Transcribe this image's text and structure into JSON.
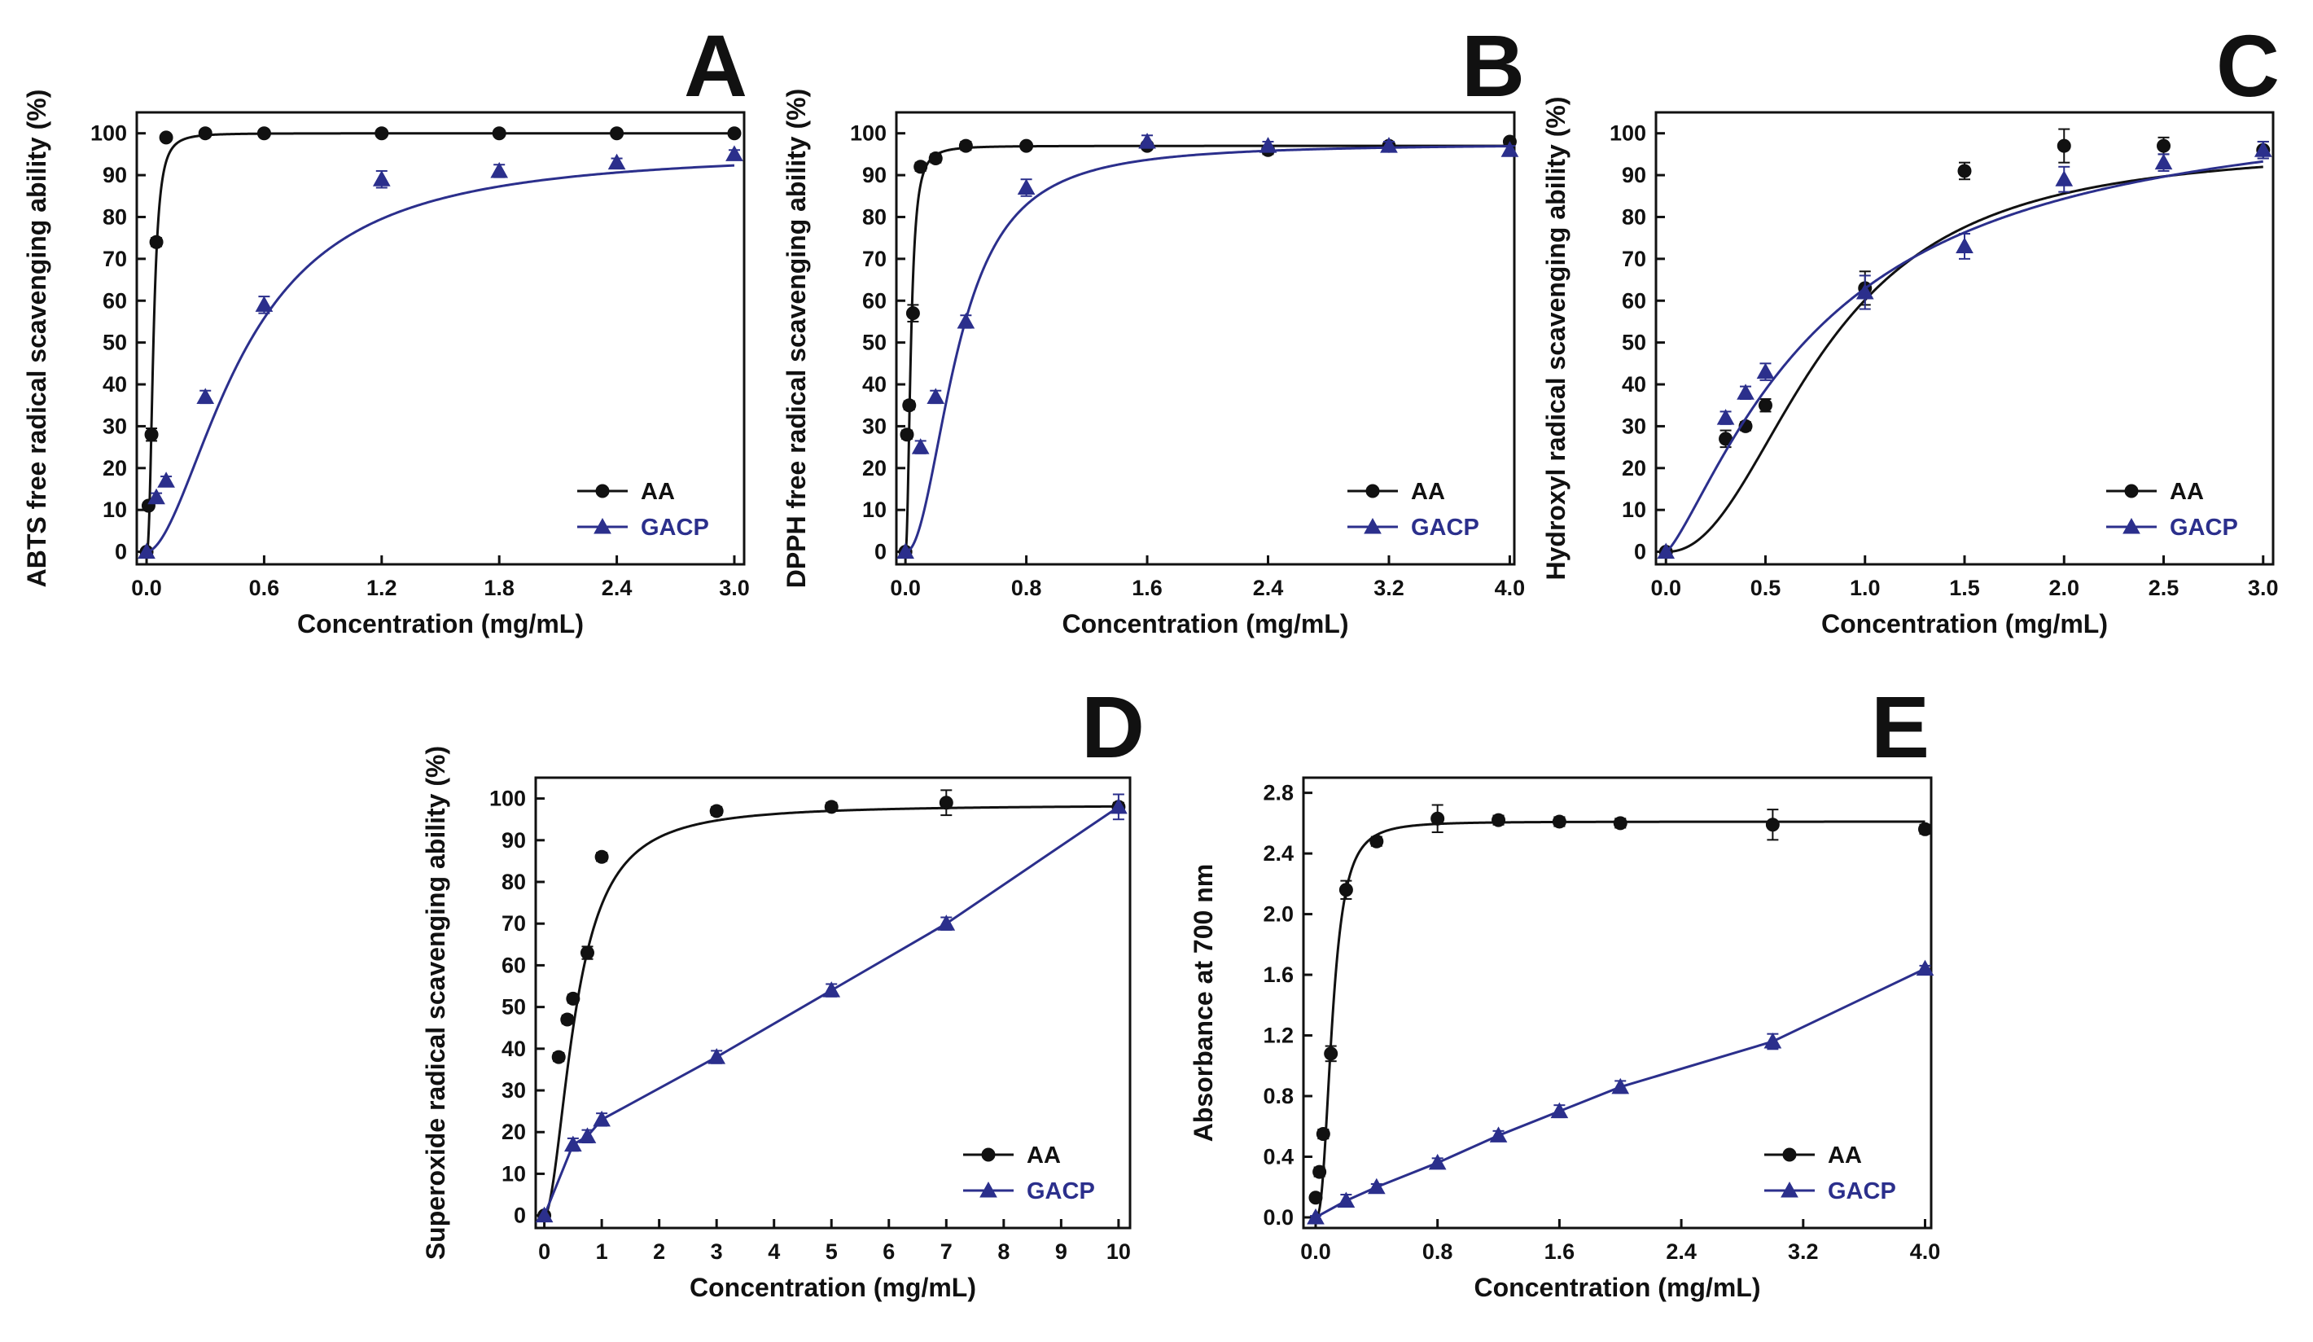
{
  "chart_data": [
    {
      "panel": "A",
      "type": "line",
      "xlabel": "Concentration (mg/mL)",
      "ylabel": "ABTS free radical scavenging ability (%)",
      "xlim": [
        -0.05,
        3.05
      ],
      "ylim": [
        -3,
        105
      ],
      "xticks": [
        0.0,
        0.6,
        1.2,
        1.8,
        2.4,
        3.0
      ],
      "xtick_labels": [
        "0.0",
        "0.6",
        "1.2",
        "1.8",
        "2.4",
        "3.0"
      ],
      "yticks": [
        0,
        10,
        20,
        30,
        40,
        50,
        60,
        70,
        80,
        90,
        100
      ],
      "ytick_labels": [
        "0",
        "10",
        "20",
        "30",
        "40",
        "50",
        "60",
        "70",
        "80",
        "90",
        "100"
      ],
      "legend_position": "bottom-right",
      "series": [
        {
          "name": "AA",
          "marker": "circle",
          "color": "#111111",
          "x": [
            0,
            0.01,
            0.025,
            0.05,
            0.1,
            0.3,
            0.6,
            1.2,
            1.8,
            2.4,
            3.0
          ],
          "y": [
            0,
            11,
            28,
            74,
            99,
            100,
            100,
            100,
            100,
            100,
            100
          ],
          "err": [
            0,
            0.5,
            1.5,
            1,
            0.5,
            0.5,
            0.5,
            0.5,
            0.5,
            0.5,
            0.5
          ],
          "fit": {
            "model": "hill",
            "top": 100,
            "ec50": 0.035,
            "n": 2.5
          }
        },
        {
          "name": "GACP",
          "marker": "triangle",
          "color": "#2b2f8c",
          "x": [
            0,
            0.05,
            0.1,
            0.3,
            0.6,
            1.2,
            1.8,
            2.4,
            3.0
          ],
          "y": [
            0,
            13,
            17,
            37,
            59,
            89,
            91,
            93,
            95
          ],
          "err": [
            0,
            1,
            1,
            1.5,
            2,
            2,
            1.5,
            1,
            1
          ],
          "fit": {
            "model": "hill",
            "top": 96,
            "ec50": 0.5,
            "n": 1.8
          }
        }
      ],
      "legend": [
        "AA",
        "GACP"
      ]
    },
    {
      "panel": "B",
      "type": "line",
      "xlabel": "Concentration (mg/mL)",
      "ylabel": "DPPH free radical scavenging ability (%)",
      "xlim": [
        -0.06,
        4.03
      ],
      "ylim": [
        -3,
        105
      ],
      "xticks": [
        0.0,
        0.8,
        1.6,
        2.4,
        3.2,
        4.0
      ],
      "xtick_labels": [
        "0.0",
        "0.8",
        "1.6",
        "2.4",
        "3.2",
        "4.0"
      ],
      "yticks": [
        0,
        10,
        20,
        30,
        40,
        50,
        60,
        70,
        80,
        90,
        100
      ],
      "ytick_labels": [
        "0",
        "10",
        "20",
        "30",
        "40",
        "50",
        "60",
        "70",
        "80",
        "90",
        "100"
      ],
      "legend_position": "bottom-right",
      "series": [
        {
          "name": "AA",
          "marker": "circle",
          "color": "#111111",
          "x": [
            0,
            0.01,
            0.025,
            0.05,
            0.1,
            0.2,
            0.4,
            0.8,
            1.6,
            2.4,
            3.2,
            4.0
          ],
          "y": [
            0,
            28,
            35,
            57,
            92,
            94,
            97,
            97,
            97,
            96,
            97,
            98
          ],
          "err": [
            0,
            1,
            1,
            2,
            1,
            1,
            1,
            0.5,
            0.5,
            1,
            0.5,
            0.5
          ],
          "fit": {
            "model": "hill",
            "top": 97,
            "ec50": 0.036,
            "n": 2.2
          }
        },
        {
          "name": "GACP",
          "marker": "triangle",
          "color": "#2b2f8c",
          "x": [
            0,
            0.1,
            0.2,
            0.4,
            0.8,
            1.6,
            2.4,
            3.2,
            4.0
          ],
          "y": [
            0,
            25,
            37,
            55,
            87,
            98,
            97,
            97,
            96
          ],
          "err": [
            0,
            1.5,
            1.5,
            1.5,
            2,
            1.5,
            1,
            1,
            1
          ],
          "fit": {
            "model": "hill",
            "top": 97.5,
            "ec50": 0.35,
            "n": 2.1
          }
        }
      ],
      "legend": [
        "AA",
        "GACP"
      ]
    },
    {
      "panel": "C",
      "type": "line",
      "xlabel": "Concentration (mg/mL)",
      "ylabel": "Hydroxyl radical scavenging ability (%)",
      "xlim": [
        -0.05,
        3.05
      ],
      "ylim": [
        -3,
        105
      ],
      "xticks": [
        0.0,
        0.5,
        1.0,
        1.5,
        2.0,
        2.5,
        3.0
      ],
      "xtick_labels": [
        "0.0",
        "0.5",
        "1.0",
        "1.5",
        "2.0",
        "2.5",
        "3.0"
      ],
      "yticks": [
        0,
        10,
        20,
        30,
        40,
        50,
        60,
        70,
        80,
        90,
        100
      ],
      "ytick_labels": [
        "0",
        "10",
        "20",
        "30",
        "40",
        "50",
        "60",
        "70",
        "80",
        "90",
        "100"
      ],
      "legend_position": "bottom-right",
      "series": [
        {
          "name": "AA",
          "marker": "circle",
          "color": "#111111",
          "x": [
            0,
            0.3,
            0.4,
            0.5,
            1.0,
            1.5,
            2.0,
            2.5,
            3.0
          ],
          "y": [
            0,
            27,
            30,
            35,
            63,
            91,
            97,
            97,
            96
          ],
          "err": [
            0,
            2,
            1,
            1.5,
            4,
            2,
            4,
            2,
            2
          ],
          "fit": {
            "model": "hill",
            "top": 97,
            "ec50": 0.8,
            "n": 2.2
          }
        },
        {
          "name": "GACP",
          "marker": "triangle",
          "color": "#2b2f8c",
          "x": [
            0,
            0.3,
            0.4,
            0.5,
            1.0,
            1.5,
            2.0,
            2.5,
            3.0
          ],
          "y": [
            0,
            32,
            38,
            43,
            62,
            73,
            89,
            93,
            96
          ],
          "err": [
            0,
            1.5,
            1.5,
            2,
            4,
            3,
            3,
            2,
            2
          ],
          "fit": {
            "model": "hill",
            "top": 110,
            "ec50": 0.8,
            "n": 1.3
          }
        }
      ],
      "legend": [
        "AA",
        "GACP"
      ]
    },
    {
      "panel": "D",
      "type": "line",
      "xlabel": "Concentration (mg/mL)",
      "ylabel": "Superoxide radical scavenging ability (%)",
      "xlim": [
        -0.15,
        10.2
      ],
      "ylim": [
        -3,
        105
      ],
      "xticks": [
        0,
        1,
        2,
        3,
        4,
        5,
        6,
        7,
        8,
        9,
        10
      ],
      "xtick_labels": [
        "0",
        "1",
        "2",
        "3",
        "4",
        "5",
        "6",
        "7",
        "8",
        "9",
        "10"
      ],
      "yticks": [
        0,
        10,
        20,
        30,
        40,
        50,
        60,
        70,
        80,
        90,
        100
      ],
      "ytick_labels": [
        "0",
        "10",
        "20",
        "30",
        "40",
        "50",
        "60",
        "70",
        "80",
        "90",
        "100"
      ],
      "legend_position": "bottom-right",
      "series": [
        {
          "name": "AA",
          "marker": "circle",
          "color": "#111111",
          "x": [
            0,
            0.25,
            0.4,
            0.5,
            0.75,
            1.0,
            3.0,
            5.0,
            7.0,
            10.0
          ],
          "y": [
            0,
            38,
            47,
            52,
            63,
            86,
            97,
            98,
            99,
            98
          ],
          "err": [
            0,
            1,
            1,
            1,
            1.5,
            1,
            1,
            1,
            3,
            1
          ],
          "fit": {
            "model": "hill",
            "top": 98.5,
            "ec50": 0.55,
            "n": 1.9
          }
        },
        {
          "name": "GACP",
          "marker": "triangle",
          "color": "#2b2f8c",
          "x": [
            0,
            0.5,
            0.75,
            1.0,
            3.0,
            5.0,
            7.0,
            10.0
          ],
          "y": [
            0,
            17,
            19,
            23,
            38,
            54,
            70,
            98
          ],
          "err": [
            0,
            1.5,
            1.5,
            1.5,
            1.5,
            1.5,
            1.5,
            3
          ],
          "fit": {
            "model": "linear"
          }
        }
      ],
      "legend": [
        "AA",
        "GACP"
      ]
    },
    {
      "panel": "E",
      "type": "line",
      "xlabel": "Concentration (mg/mL)",
      "ylabel": "Absorbance at 700 nm",
      "xlim": [
        -0.08,
        4.04
      ],
      "ylim": [
        -0.07,
        2.9
      ],
      "xticks": [
        0.0,
        0.8,
        1.6,
        2.4,
        3.2,
        4.0
      ],
      "xtick_labels": [
        "0.0",
        "0.8",
        "1.6",
        "2.4",
        "3.2",
        "4.0"
      ],
      "yticks": [
        0.0,
        0.4,
        0.8,
        1.2,
        1.6,
        2.0,
        2.4,
        2.8
      ],
      "ytick_labels": [
        "0.0",
        "0.4",
        "0.8",
        "1.2",
        "1.6",
        "2.0",
        "2.4",
        "2.8"
      ],
      "legend_position": "bottom-right",
      "series": [
        {
          "name": "AA",
          "marker": "circle",
          "color": "#111111",
          "x": [
            0,
            0.025,
            0.05,
            0.1,
            0.2,
            0.4,
            0.8,
            1.2,
            1.6,
            2.0,
            3.0,
            4.0
          ],
          "y": [
            0.13,
            0.3,
            0.55,
            1.08,
            2.16,
            2.48,
            2.63,
            2.62,
            2.61,
            2.6,
            2.59,
            2.56
          ],
          "err": [
            0.02,
            0.03,
            0.03,
            0.05,
            0.06,
            0.03,
            0.09,
            0.03,
            0.03,
            0.03,
            0.1,
            0.03
          ],
          "fit": {
            "model": "hill",
            "top": 2.61,
            "ec50": 0.11,
            "n": 2.6
          }
        },
        {
          "name": "GACP",
          "marker": "triangle",
          "color": "#2b2f8c",
          "x": [
            0,
            0.2,
            0.4,
            0.8,
            1.2,
            1.6,
            2.0,
            3.0,
            4.0
          ],
          "y": [
            0.0,
            0.11,
            0.2,
            0.36,
            0.54,
            0.7,
            0.86,
            1.16,
            1.64
          ],
          "err": [
            0.01,
            0.04,
            0.02,
            0.03,
            0.03,
            0.04,
            0.04,
            0.05,
            0.02
          ],
          "fit": {
            "model": "linear"
          }
        }
      ],
      "legend": [
        "AA",
        "GACP"
      ]
    }
  ],
  "colors": {
    "aa": "#111111",
    "gacp": "#2b2f8c",
    "axis": "#111111",
    "background": "#ffffff"
  },
  "markers": {
    "aa": "circle",
    "gacp": "triangle"
  }
}
